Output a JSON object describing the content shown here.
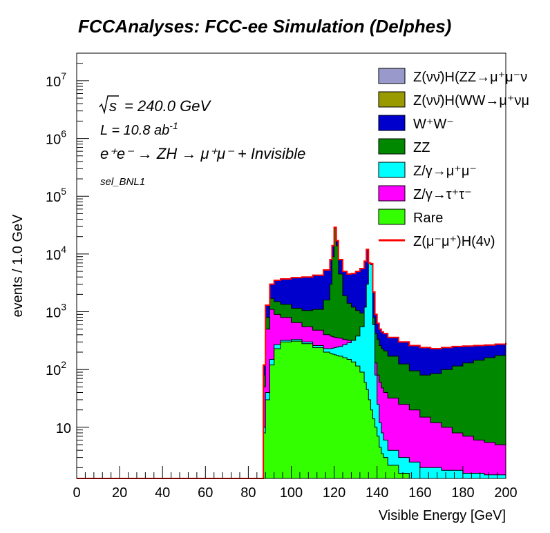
{
  "title": "FCCAnalyses: FCC-ee Simulation (Delphes)",
  "annotations": {
    "sqrt_s_symbol": "s",
    "energy": "= 240.0 GeV",
    "lumi_prefix": "L = 10.8 ab",
    "lumi_exp": "-1",
    "process": "e⁺e⁻ → ZH → μ⁺μ⁻ + Invisible",
    "selection": "sel_BNL1"
  },
  "colors": {
    "ZnunuH_ZZ": "#9999cc",
    "ZnunuH_WW": "#999900",
    "WW": "#0000cc",
    "ZZ": "#008800",
    "Zmumu": "#00ffff",
    "Ztautau": "#ff00ff",
    "Rare": "#33ff00",
    "signal": "#ff0000"
  },
  "chart_data": {
    "type": "area",
    "title": "FCCAnalyses: FCC-ee Simulation (Delphes)",
    "xlabel": "Visible Energy [GeV]",
    "ylabel": "events / 1.0 GeV",
    "xlim": [
      0,
      200
    ],
    "ylim": [
      1.3,
      30000000
    ],
    "yscale": "log",
    "stacked": true,
    "x_ticks": [
      "0",
      "20",
      "40",
      "60",
      "80",
      "100",
      "120",
      "140",
      "160",
      "180",
      "200"
    ],
    "y_ticks": [
      {
        "value": 10,
        "label": "10"
      },
      {
        "value": 100,
        "label": "10",
        "exp": "2"
      },
      {
        "value": 1000,
        "label": "10",
        "exp": "3"
      },
      {
        "value": 10000,
        "label": "10",
        "exp": "4"
      },
      {
        "value": 100000,
        "label": "10",
        "exp": "5"
      },
      {
        "value": 1000000,
        "label": "10",
        "exp": "6"
      },
      {
        "value": 10000000,
        "label": "10",
        "exp": "7"
      }
    ],
    "x": [
      86,
      87,
      88,
      90,
      92,
      95,
      100,
      105,
      110,
      115,
      118,
      119,
      120,
      121,
      122,
      124,
      126,
      128,
      130,
      132,
      134,
      135,
      136,
      137,
      138,
      139,
      140,
      141,
      142,
      143,
      145,
      150,
      155,
      160,
      165,
      170,
      175,
      180,
      185,
      190,
      195,
      200
    ],
    "series": [
      {
        "key": "Rare",
        "values": [
          1.3,
          8,
          30,
          120,
          230,
          300,
          310,
          280,
          240,
          200,
          190,
          185,
          180,
          175,
          170,
          160,
          150,
          135,
          115,
          90,
          60,
          45,
          30,
          20,
          14,
          10,
          7,
          4.5,
          3.5,
          3,
          2.2,
          1.6,
          1.3,
          1.3,
          1.3,
          1.3,
          1.3,
          1.3,
          1.3,
          1.3,
          1.3,
          1.3
        ]
      },
      {
        "key": "Zmumu",
        "values": [
          1.3,
          10,
          40,
          150,
          270,
          320,
          330,
          300,
          260,
          230,
          230,
          235,
          240,
          245,
          250,
          270,
          290,
          320,
          380,
          550,
          1200,
          3000,
          7000,
          6500,
          600,
          80,
          25,
          12,
          8,
          6,
          4,
          3,
          2.5,
          2,
          2,
          1.8,
          1.8,
          1.6,
          1.6,
          1.5,
          1.5,
          1.5
        ]
      },
      {
        "key": "Ztautau",
        "values": [
          1.3,
          50,
          500,
          1100,
          900,
          800,
          650,
          550,
          480,
          400,
          380,
          370,
          360,
          355,
          350,
          330,
          320,
          310,
          300,
          300,
          320,
          600,
          1500,
          1400,
          300,
          130,
          80,
          60,
          48,
          40,
          32,
          25,
          20,
          15,
          12,
          10,
          8,
          7,
          6,
          5.5,
          5,
          5
        ]
      },
      {
        "key": "ZZ",
        "values": [
          1.3,
          80,
          800,
          1700,
          1500,
          1350,
          1150,
          1050,
          1100,
          1600,
          3000,
          9000,
          28000,
          14000,
          4500,
          1900,
          1400,
          1200,
          1050,
          950,
          1050,
          1500,
          3200,
          3000,
          800,
          420,
          330,
          260,
          230,
          210,
          170,
          125,
          95,
          80,
          85,
          100,
          115,
          130,
          145,
          160,
          175,
          190
        ]
      },
      {
        "key": "WW",
        "values": [
          1.3,
          120,
          1300,
          3000,
          3500,
          3700,
          3900,
          4000,
          4300,
          5300,
          8000,
          14000,
          29000,
          17000,
          8000,
          5000,
          4500,
          4600,
          5000,
          5600,
          7500,
          12000,
          7000,
          6800,
          2200,
          900,
          630,
          500,
          450,
          420,
          360,
          300,
          260,
          240,
          230,
          240,
          250,
          255,
          260,
          265,
          275,
          290
        ]
      },
      {
        "key": "ZnunuH_WW",
        "values": [
          1.3,
          120,
          1300,
          3000,
          3500,
          3700,
          3900,
          4000,
          4300,
          5300,
          8000,
          14000,
          29000,
          17000,
          8000,
          5000,
          4500,
          4600,
          5000,
          5600,
          7500,
          12000,
          7000,
          6800,
          2200,
          900,
          630,
          500,
          450,
          420,
          360,
          300,
          260,
          240,
          230,
          240,
          250,
          255,
          260,
          265,
          275,
          290
        ]
      },
      {
        "key": "ZnunuH_ZZ",
        "values": [
          1.3,
          120,
          1300,
          3000,
          3500,
          3700,
          3900,
          4000,
          4300,
          5300,
          8000,
          14000,
          29000,
          17000,
          8000,
          5000,
          4500,
          4600,
          5000,
          5600,
          7500,
          12000,
          7000,
          6800,
          2200,
          900,
          630,
          500,
          450,
          420,
          360,
          300,
          260,
          240,
          230,
          240,
          250,
          255,
          260,
          265,
          275,
          290
        ]
      }
    ],
    "signal": {
      "key": "signal",
      "values": [
        1.3,
        120,
        1300,
        3000,
        3500,
        3700,
        3900,
        4000,
        4300,
        5300,
        8000,
        14000,
        29000,
        17000,
        8000,
        5000,
        4500,
        4600,
        5000,
        5600,
        7500,
        12000,
        7000,
        6800,
        2200,
        900,
        630,
        500,
        450,
        420,
        360,
        300,
        260,
        240,
        230,
        240,
        250,
        255,
        260,
        265,
        275,
        290
      ]
    },
    "legend": [
      {
        "key": "ZnunuH_ZZ",
        "label": "Z(νν̄)H(ZZ→μ⁺μ⁻ν",
        "style": "box"
      },
      {
        "key": "ZnunuH_WW",
        "label": "Z(νν̄)H(WW→μ⁺νμ",
        "style": "box"
      },
      {
        "key": "WW",
        "label": "W⁺W⁻",
        "style": "box"
      },
      {
        "key": "ZZ",
        "label": "ZZ",
        "style": "box"
      },
      {
        "key": "Zmumu",
        "label": "Z/γ→μ⁺μ⁻",
        "style": "box"
      },
      {
        "key": "Ztautau",
        "label": "Z/γ→τ⁺τ⁻",
        "style": "box"
      },
      {
        "key": "Rare",
        "label": "Rare",
        "style": "box"
      },
      {
        "key": "signal",
        "label": "Z(μ⁻μ⁺)H(4ν)",
        "style": "line"
      }
    ],
    "legend_position": "top-right",
    "grid": false
  }
}
